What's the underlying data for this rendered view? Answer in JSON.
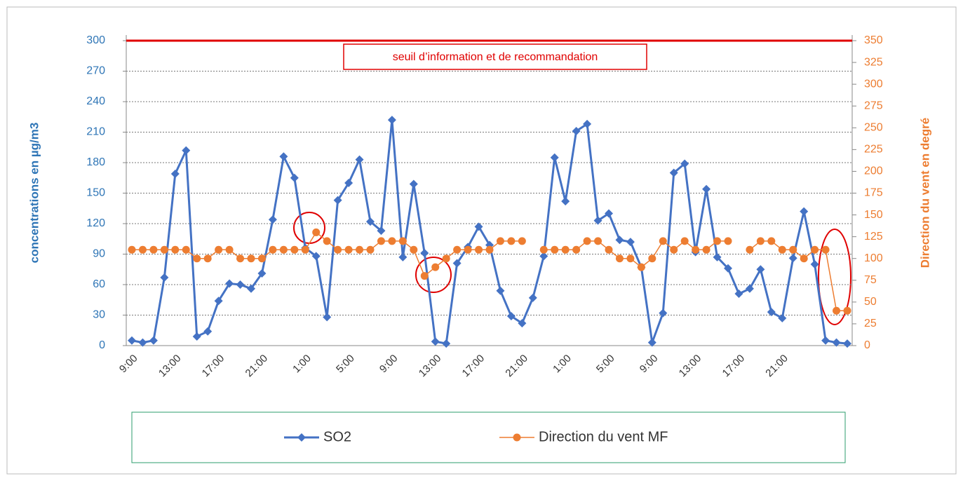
{
  "chart_data": {
    "type": "line",
    "categories": [
      "9:00",
      null,
      null,
      null,
      "13:00",
      null,
      null,
      null,
      "17:00",
      null,
      null,
      null,
      "21:00",
      null,
      null,
      null,
      "1:00",
      null,
      null,
      null,
      "5:00",
      null,
      null,
      null,
      "9:00",
      null,
      null,
      null,
      "13:00",
      null,
      null,
      null,
      "17:00",
      null,
      null,
      null,
      "21:00",
      null,
      null,
      null,
      "1:00",
      null,
      null,
      null,
      "5:00",
      null,
      null,
      null,
      "9:00",
      null,
      null,
      null,
      "13:00",
      null,
      null,
      null,
      "17:00",
      null,
      null,
      null,
      "21:00",
      null,
      null,
      null,
      null,
      null,
      null
    ],
    "series": [
      {
        "name": "SO2",
        "color": "#4472c4",
        "axis": "y",
        "values": [
          5,
          3,
          5,
          67,
          169,
          192,
          9,
          14,
          44,
          61,
          60,
          56,
          71,
          124,
          186,
          165,
          96,
          88,
          28,
          143,
          160,
          183,
          122,
          113,
          222,
          87,
          159,
          91,
          4,
          2,
          81,
          97,
          117,
          99,
          54,
          29,
          22,
          47,
          88,
          185,
          142,
          211,
          218,
          123,
          130,
          104,
          102,
          77,
          3,
          32,
          170,
          179,
          92,
          154,
          87,
          76,
          51,
          56,
          75,
          33,
          27,
          86,
          132,
          80,
          5,
          3,
          2
        ]
      },
      {
        "name": "Direction du vent MF",
        "color": "#ed7d31",
        "axis": "y2",
        "values": [
          110,
          110,
          110,
          110,
          110,
          110,
          100,
          100,
          110,
          110,
          100,
          100,
          100,
          110,
          110,
          110,
          110,
          130,
          120,
          110,
          110,
          110,
          110,
          120,
          120,
          120,
          110,
          80,
          90,
          100,
          110,
          110,
          110,
          110,
          120,
          120,
          120,
          null,
          110,
          110,
          110,
          110,
          120,
          120,
          110,
          100,
          100,
          90,
          100,
          120,
          110,
          120,
          110,
          110,
          120,
          120,
          null,
          110,
          120,
          120,
          110,
          110,
          100,
          110,
          110,
          40,
          40
        ]
      }
    ],
    "ylabel": "concentrations en  µg/m3",
    "y2label": "Direction du vent en degré",
    "ylim": [
      0,
      300
    ],
    "yticks": [
      0,
      30,
      60,
      90,
      120,
      150,
      180,
      210,
      240,
      270,
      300
    ],
    "y2lim": [
      0,
      350
    ],
    "y2ticks": [
      0,
      25,
      50,
      75,
      100,
      125,
      150,
      175,
      200,
      225,
      250,
      275,
      300,
      325,
      350
    ],
    "threshold": {
      "value": 300,
      "label": "seuil d’information et de recommandation",
      "color": "#e00000"
    },
    "grid": true,
    "legend": "bottom"
  }
}
